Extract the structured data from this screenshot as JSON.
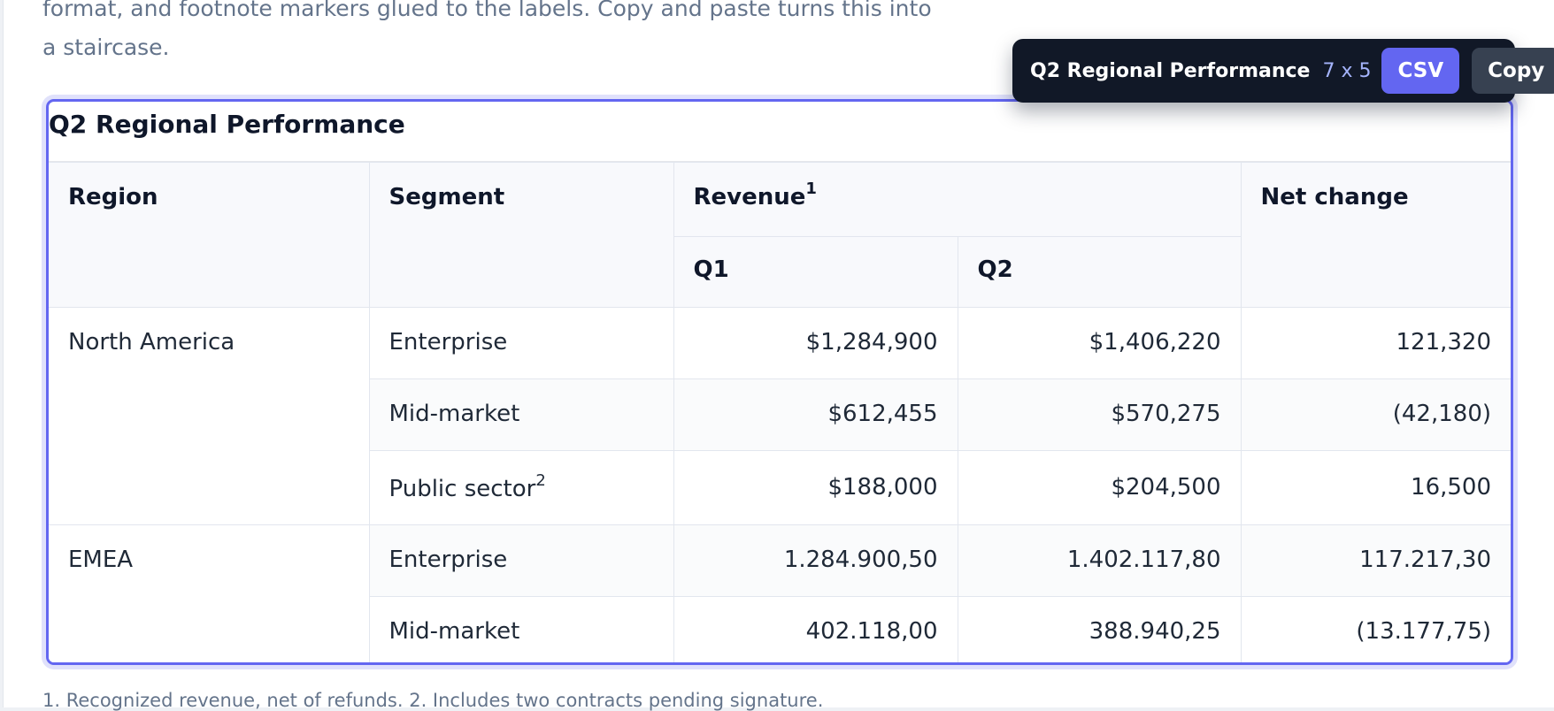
{
  "intro": {
    "text": "format, and footnote markers glued to the labels. Copy and paste turns this into a staircase."
  },
  "toolbar": {
    "title": "Q2 Regional Performance",
    "dimensions": "7 x 5",
    "csv_label": "CSV",
    "copy_label": "Copy"
  },
  "table": {
    "caption": "Q2 Regional Performance",
    "headers": {
      "region": "Region",
      "segment": "Segment",
      "revenue": "Revenue",
      "revenue_marker": "1",
      "q1": "Q1",
      "q2": "Q2",
      "net_change": "Net change"
    },
    "groups": [
      {
        "region": "North America",
        "rows": [
          {
            "segment": "Enterprise",
            "marker": "",
            "q1": "$1,284,900",
            "q2": "$1,406,220",
            "net": "121,320"
          },
          {
            "segment": "Mid-market",
            "marker": "",
            "q1": "$612,455",
            "q2": "$570,275",
            "net": "(42,180)"
          },
          {
            "segment": "Public sector",
            "marker": "2",
            "q1": "$188,000",
            "q2": "$204,500",
            "net": "16,500"
          }
        ]
      },
      {
        "region": "EMEA",
        "rows": [
          {
            "segment": "Enterprise",
            "marker": "",
            "q1": "1.284.900,50",
            "q2": "1.402.117,80",
            "net": "117.217,30"
          },
          {
            "segment": "Mid-market",
            "marker": "",
            "q1": "402.118,00",
            "q2": "388.940,25",
            "net": "(13.177,75)"
          }
        ]
      }
    ]
  },
  "footnotes": {
    "text": "1. Recognized revenue, net of refunds. 2. Includes two contracts pending signature."
  },
  "colors": {
    "accent": "#6366f1",
    "toolbar_bg": "#111827",
    "copy_button_bg": "#374151"
  }
}
